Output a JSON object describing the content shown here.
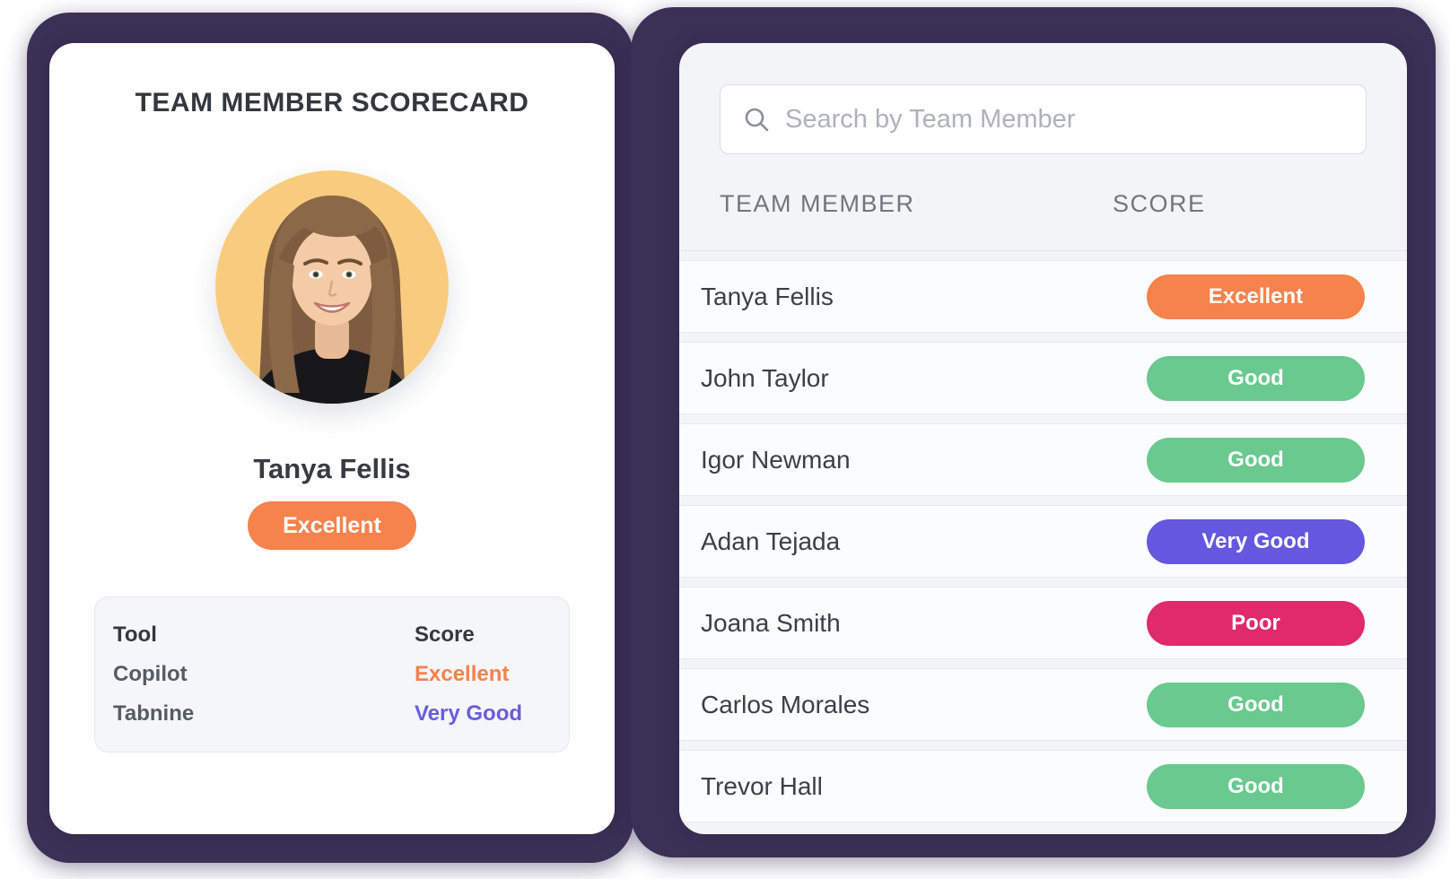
{
  "left_card": {
    "title": "TEAM MEMBER SCORECARD",
    "member": {
      "name": "Tanya Fellis",
      "overall_score": "Excellent",
      "overall_score_color": "#F6824C"
    },
    "avatar": {
      "description": "woman-portrait-on-yellow-circle",
      "bg_color": "#F8CB7E"
    },
    "tools_table": {
      "headers": {
        "tool": "Tool",
        "score": "Score"
      },
      "rows": [
        {
          "tool": "Copilot",
          "score": "Excellent",
          "score_color": "#F6824C"
        },
        {
          "tool": "Tabnine",
          "score": "Very Good",
          "score_color": "#6A5CE0"
        }
      ]
    }
  },
  "right_card": {
    "search": {
      "placeholder": "Search by Team Member",
      "icon": "search-icon"
    },
    "table": {
      "headers": {
        "member": "TEAM MEMBER",
        "score": "SCORE"
      },
      "rows": [
        {
          "member": "Tanya Fellis",
          "score": "Excellent",
          "badge_color": "#F6824C"
        },
        {
          "member": "John Taylor",
          "score": "Good",
          "badge_color": "#69C98F"
        },
        {
          "member": "Igor Newman",
          "score": "Good",
          "badge_color": "#69C98F"
        },
        {
          "member": "Adan Tejada",
          "score": "Very Good",
          "badge_color": "#6358DF"
        },
        {
          "member": "Joana Smith",
          "score": "Poor",
          "badge_color": "#DF2A6B"
        },
        {
          "member": "Carlos Morales",
          "score": "Good",
          "badge_color": "#69C98F"
        },
        {
          "member": "Trevor Hall",
          "score": "Good",
          "badge_color": "#69C98F"
        }
      ]
    }
  },
  "colors": {
    "frame_navy": "#3B3157",
    "excellent_orange": "#F6824C",
    "good_green": "#69C98F",
    "very_good_purple": "#6358DF",
    "poor_pink": "#DF2A6B"
  }
}
